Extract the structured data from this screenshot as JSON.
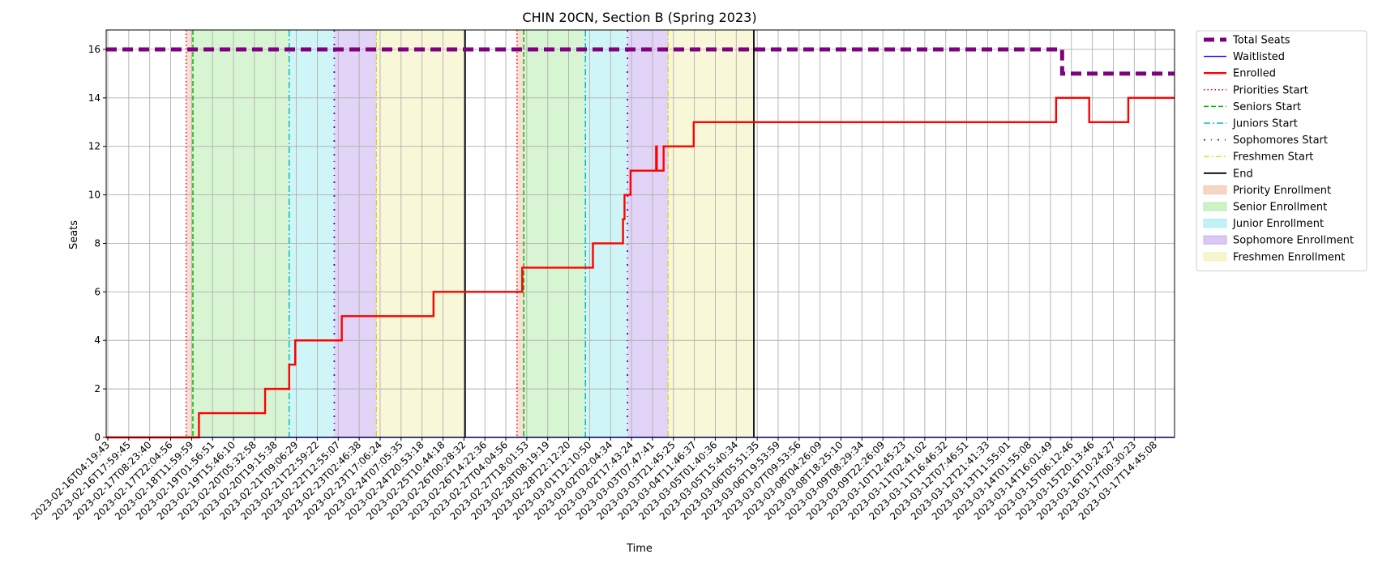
{
  "chart_data": {
    "type": "line",
    "title": "CHIN 20CN, Section B (Spring 2023)",
    "xlabel": "Time",
    "ylabel": "Seats",
    "ylim": [
      0,
      16.8
    ],
    "xlim": [
      "2023-02-16T04:19:43",
      "2023-03-17T18:45:00"
    ],
    "yticks": [
      0,
      2,
      4,
      6,
      8,
      10,
      12,
      14,
      16
    ],
    "grid": true,
    "legend_position": "outside-right-top",
    "x_tick_labels": [
      "2023-02-16T04:19:43",
      "2023-02-16T17:59:45",
      "2023-02-17T08:23:40",
      "2023-02-17T22:04:56",
      "2023-02-18T11:59:59",
      "2023-02-19T01:56:51",
      "2023-02-19T15:46:10",
      "2023-02-20T05:32:58",
      "2023-02-20T19:15:38",
      "2023-02-21T09:06:29",
      "2023-02-21T22:59:22",
      "2023-02-22T12:55:07",
      "2023-02-23T02:46:38",
      "2023-02-23T17:06:24",
      "2023-02-24T07:05:35",
      "2023-02-24T20:53:18",
      "2023-02-25T10:44:18",
      "2023-02-26T00:28:32",
      "2023-02-26T14:22:36",
      "2023-02-27T04:04:56",
      "2023-02-27T18:01:53",
      "2023-02-28T08:19:19",
      "2023-02-28T22:12:20",
      "2023-03-01T12:10:50",
      "2023-03-02T02:04:34",
      "2023-03-02T17:43:24",
      "2023-03-03T07:47:41",
      "2023-03-03T21:45:25",
      "2023-03-04T11:46:37",
      "2023-03-05T01:40:36",
      "2023-03-05T15:40:34",
      "2023-03-06T05:51:35",
      "2023-03-06T19:53:59",
      "2023-03-07T09:53:56",
      "2023-03-08T04:26:09",
      "2023-03-08T18:25:10",
      "2023-03-09T08:29:34",
      "2023-03-09T22:26:09",
      "2023-03-10T12:45:23",
      "2023-03-11T02:41:02",
      "2023-03-11T16:46:32",
      "2023-03-12T07:46:51",
      "2023-03-12T21:41:33",
      "2023-03-13T11:55:01",
      "2023-03-14T01:55:08",
      "2023-03-14T16:01:49",
      "2023-03-15T06:12:46",
      "2023-03-15T20:13:46",
      "2023-03-16T10:24:27",
      "2023-03-17T00:30:23",
      "2023-03-17T14:45:08"
    ],
    "series": [
      {
        "name": "Total Seats",
        "color": "#800080",
        "style": "dashed-thick",
        "points": [
          [
            "2023-02-16T04:19:43",
            16
          ],
          [
            "2023-03-14T16:00:00",
            16
          ],
          [
            "2023-03-14T16:00:00",
            15
          ],
          [
            "2023-03-17T18:45:00",
            15
          ]
        ]
      },
      {
        "name": "Waitlisted",
        "color": "#0000ff",
        "style": "solid-thin",
        "points": [
          [
            "2023-02-16T04:19:43",
            0
          ],
          [
            "2023-03-17T18:45:00",
            0
          ]
        ]
      },
      {
        "name": "Enrolled",
        "color": "#ff0000",
        "style": "solid-thick",
        "points": [
          [
            "2023-02-16T04:19:43",
            0
          ],
          [
            "2023-02-18T18:00:00",
            0
          ],
          [
            "2023-02-18T18:00:00",
            1
          ],
          [
            "2023-02-20T14:00:00",
            1
          ],
          [
            "2023-02-20T14:00:00",
            2
          ],
          [
            "2023-02-21T06:00:00",
            2
          ],
          [
            "2023-02-21T06:00:00",
            3
          ],
          [
            "2023-02-21T10:00:00",
            3
          ],
          [
            "2023-02-21T10:00:00",
            4
          ],
          [
            "2023-02-22T17:00:00",
            4
          ],
          [
            "2023-02-22T17:00:00",
            5
          ],
          [
            "2023-02-25T06:00:00",
            5
          ],
          [
            "2023-02-25T06:00:00",
            6
          ],
          [
            "2023-02-27T17:00:00",
            6
          ],
          [
            "2023-02-27T17:00:00",
            7
          ],
          [
            "2023-03-01T16:00:00",
            7
          ],
          [
            "2023-03-01T16:00:00",
            8
          ],
          [
            "2023-03-02T12:00:00",
            8
          ],
          [
            "2023-03-02T12:00:00",
            9
          ],
          [
            "2023-03-02T13:00:00",
            9
          ],
          [
            "2023-03-02T13:00:00",
            10
          ],
          [
            "2023-03-02T17:00:00",
            10
          ],
          [
            "2023-03-02T17:00:00",
            11
          ],
          [
            "2023-03-03T10:00:00",
            11
          ],
          [
            "2023-03-03T10:00:00",
            12
          ],
          [
            "2023-03-03T10:30:00",
            12
          ],
          [
            "2023-03-03T10:30:00",
            11
          ],
          [
            "2023-03-03T15:00:00",
            11
          ],
          [
            "2023-03-03T15:00:00",
            12
          ],
          [
            "2023-03-04T11:00:00",
            12
          ],
          [
            "2023-03-04T11:00:00",
            13
          ],
          [
            "2023-03-14T12:00:00",
            13
          ],
          [
            "2023-03-14T12:00:00",
            14
          ],
          [
            "2023-03-15T10:00:00",
            14
          ],
          [
            "2023-03-15T10:00:00",
            13
          ],
          [
            "2023-03-16T12:00:00",
            13
          ],
          [
            "2023-03-16T12:00:00",
            14
          ],
          [
            "2023-03-17T18:45:00",
            14
          ]
        ]
      }
    ],
    "vertical_markers": [
      {
        "name": "Priorities Start",
        "color": "#ff0000",
        "style": "dotted",
        "x": [
          "2023-02-18T09:30:00",
          "2023-02-27T13:30:00"
        ]
      },
      {
        "name": "Seniors Start",
        "color": "#00bb00",
        "style": "dashed",
        "x": [
          "2023-02-18T14:00:00",
          "2023-02-27T18:00:00"
        ]
      },
      {
        "name": "Juniors Start",
        "color": "#00bfbf",
        "style": "dashdot",
        "x": [
          "2023-02-21T06:00:00",
          "2023-03-01T11:00:00"
        ]
      },
      {
        "name": "Sophomores Start",
        "color": "#5000d0",
        "style": "dashdot-sparse",
        "x": [
          "2023-02-22T12:00:00",
          "2023-03-02T15:00:00"
        ]
      },
      {
        "name": "Freshmen Start",
        "color": "#d4d400",
        "style": "dashdot-light",
        "x": [
          "2023-02-23T16:00:00",
          "2023-03-03T18:00:00"
        ]
      },
      {
        "name": "End",
        "color": "#000000",
        "style": "solid",
        "x": [
          "2023-02-26T03:00:00",
          "2023-03-06T03:00:00"
        ]
      }
    ],
    "shaded_regions": [
      {
        "name": "Priority Enrollment",
        "color": "#f4c4b0",
        "spans": [
          [
            "2023-02-18T09:30:00",
            "2023-02-18T14:00:00"
          ],
          [
            "2023-02-27T13:30:00",
            "2023-02-27T18:00:00"
          ]
        ]
      },
      {
        "name": "Senior Enrollment",
        "color": "#b8ecae",
        "spans": [
          [
            "2023-02-18T14:00:00",
            "2023-02-21T06:00:00"
          ],
          [
            "2023-02-27T18:00:00",
            "2023-03-01T11:00:00"
          ]
        ]
      },
      {
        "name": "Junior Enrollment",
        "color": "#a8ecee",
        "spans": [
          [
            "2023-02-21T06:00:00",
            "2023-02-22T12:00:00"
          ],
          [
            "2023-03-01T11:00:00",
            "2023-03-02T15:00:00"
          ]
        ]
      },
      {
        "name": "Sophomore Enrollment",
        "color": "#c9b0ee",
        "spans": [
          [
            "2023-02-22T12:00:00",
            "2023-02-23T16:00:00"
          ],
          [
            "2023-03-02T15:00:00",
            "2023-03-03T18:00:00"
          ]
        ]
      },
      {
        "name": "Freshmen Enrollment",
        "color": "#f2f2b8",
        "spans": [
          [
            "2023-02-23T16:00:00",
            "2023-02-26T03:00:00"
          ],
          [
            "2023-03-03T18:00:00",
            "2023-03-06T03:00:00"
          ]
        ]
      }
    ],
    "legend": [
      {
        "label": "Total Seats",
        "kind": "line",
        "color": "#800080",
        "style": "dashed-thick"
      },
      {
        "label": "Waitlisted",
        "kind": "line",
        "color": "#0000ff",
        "style": "solid-thin"
      },
      {
        "label": "Enrolled",
        "kind": "line",
        "color": "#ff0000",
        "style": "solid-thick"
      },
      {
        "label": "Priorities Start",
        "kind": "line",
        "color": "#ff0000",
        "style": "dotted"
      },
      {
        "label": "Seniors Start",
        "kind": "line",
        "color": "#00bb00",
        "style": "dashed"
      },
      {
        "label": "Juniors Start",
        "kind": "line",
        "color": "#00bfbf",
        "style": "dashdot"
      },
      {
        "label": "Sophomores Start",
        "kind": "line",
        "color": "#5000d0",
        "style": "dashdot-sparse"
      },
      {
        "label": "Freshmen Start",
        "kind": "line",
        "color": "#d4d400",
        "style": "dashdot-light"
      },
      {
        "label": "End",
        "kind": "line",
        "color": "#000000",
        "style": "solid"
      },
      {
        "label": "Priority Enrollment",
        "kind": "patch",
        "color": "#f4c4b0"
      },
      {
        "label": "Senior Enrollment",
        "kind": "patch",
        "color": "#b8ecae"
      },
      {
        "label": "Junior Enrollment",
        "kind": "patch",
        "color": "#a8ecee"
      },
      {
        "label": "Sophomore Enrollment",
        "kind": "patch",
        "color": "#c9b0ee"
      },
      {
        "label": "Freshmen Enrollment",
        "kind": "patch",
        "color": "#f2f2b8"
      }
    ]
  }
}
